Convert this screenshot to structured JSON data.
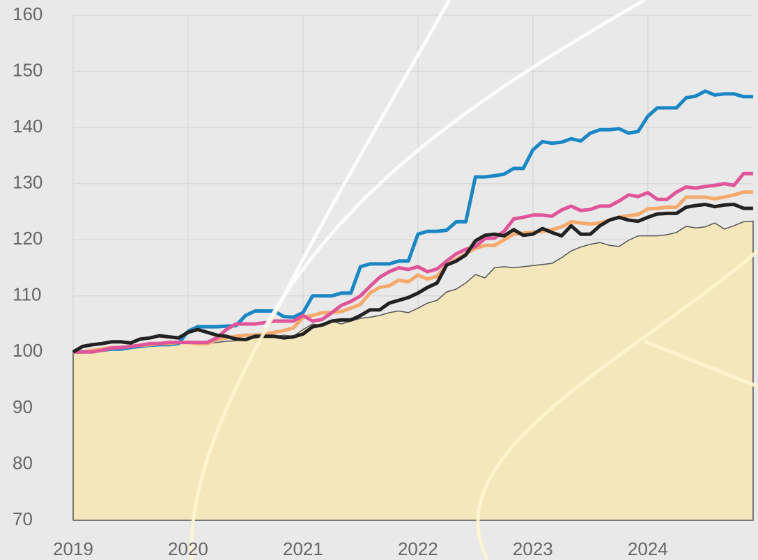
{
  "chart_data": {
    "type": "line",
    "categories": [
      "2019",
      null,
      null,
      null,
      null,
      null,
      null,
      null,
      null,
      null,
      null,
      null,
      "2020",
      null,
      null,
      null,
      null,
      null,
      null,
      null,
      null,
      null,
      null,
      null,
      "2021",
      null,
      null,
      null,
      null,
      null,
      null,
      null,
      null,
      null,
      null,
      null,
      "2022",
      null,
      null,
      null,
      null,
      null,
      null,
      null,
      null,
      null,
      null,
      null,
      "2023",
      null,
      null,
      null,
      null,
      null,
      null,
      null,
      null,
      null,
      null,
      null,
      "2024",
      null,
      null,
      null,
      null,
      null,
      null,
      null,
      null,
      null,
      null,
      null
    ],
    "ylim": [
      70,
      160
    ],
    "yticks": [
      70,
      80,
      90,
      100,
      110,
      120,
      130,
      140,
      150,
      160
    ],
    "grid": true,
    "series": [
      {
        "color": "#555555",
        "fill": "#f3e7bb",
        "area": true,
        "values": [
          100,
          100,
          100.2,
          100.5,
          100.7,
          100.8,
          101,
          101.2,
          101.2,
          101.4,
          101.5,
          101.5,
          101.7,
          101.5,
          101.5,
          101.7,
          101.9,
          102,
          102.3,
          102.5,
          102.8,
          102.8,
          103,
          102.8,
          104,
          105,
          104.7,
          105.5,
          105,
          105.5,
          106,
          106.2,
          106.5,
          107,
          107.3,
          107,
          107.8,
          108.7,
          109.2,
          110.7,
          111.2,
          112.3,
          113.8,
          113.2,
          115,
          115.2,
          115,
          115.2,
          115.4,
          115.6,
          115.8,
          116.8,
          118,
          118.7,
          119.2,
          119.5,
          119,
          118.8,
          119.9,
          120.7,
          120.7,
          120.7,
          120.9,
          121.3,
          122.4,
          122.1,
          122.3,
          123,
          121.9,
          122.5,
          123.2,
          123.3
        ]
      },
      {
        "color": "#1a87c4",
        "values": [
          100,
          100,
          100.2,
          100.3,
          100.5,
          100.5,
          100.8,
          101,
          101.2,
          101.3,
          101.3,
          101.5,
          103.7,
          104.5,
          104.5,
          104.5,
          104.6,
          104.7,
          106.5,
          107.3,
          107.3,
          107.3,
          106.3,
          106.2,
          107,
          110,
          110,
          110,
          110.5,
          110.5,
          115.2,
          115.7,
          115.7,
          115.7,
          116.2,
          116.2,
          121,
          121.5,
          121.5,
          121.7,
          123.2,
          123.2,
          131.2,
          131.2,
          131.4,
          131.7,
          132.7,
          132.7,
          136,
          137.5,
          137.2,
          137.4,
          138,
          137.6,
          139,
          139.6,
          139.6,
          139.8,
          139,
          139.3,
          142,
          143.5,
          143.5,
          143.5,
          145.3,
          145.6,
          146.5,
          145.8,
          146,
          146,
          145.5,
          145.5
        ]
      },
      {
        "color": "#f5a96b",
        "values": [
          100,
          100,
          100.3,
          100.5,
          100.8,
          100.8,
          101,
          101.2,
          101.3,
          101.5,
          101.5,
          101.7,
          101.7,
          101.5,
          101.5,
          102.2,
          102.5,
          102.8,
          103,
          103,
          103.2,
          103.5,
          103.8,
          104.3,
          106.2,
          106.5,
          107,
          107,
          107.2,
          107.8,
          108.5,
          110.5,
          111.5,
          111.8,
          112.8,
          112.5,
          113.7,
          113,
          113.5,
          115.5,
          116.5,
          117.5,
          118.5,
          119,
          119,
          120,
          121,
          121.2,
          121.3,
          121.5,
          121.8,
          122.3,
          123.2,
          123,
          122.8,
          123,
          123.5,
          124,
          124.3,
          124.5,
          125.5,
          125.6,
          125.8,
          125.8,
          127.6,
          127.6,
          127.6,
          127.3,
          127.6,
          128,
          128.5,
          128.5
        ]
      },
      {
        "color": "#e0559a",
        "values": [
          100,
          100,
          100,
          100.3,
          100.7,
          100.8,
          101,
          101.2,
          101.5,
          101.5,
          101.7,
          101.7,
          101.7,
          101.7,
          101.7,
          102.5,
          104,
          105,
          105,
          105,
          105.2,
          105.5,
          105.5,
          105.5,
          106.5,
          105.5,
          105.8,
          107,
          108.3,
          109,
          110,
          111.7,
          113.3,
          114.3,
          115,
          114.7,
          115.2,
          114.3,
          114.8,
          116.2,
          117.5,
          118.3,
          118.8,
          120.2,
          120.3,
          121.5,
          123.7,
          124,
          124.4,
          124.4,
          124.2,
          125.3,
          126,
          125.2,
          125.4,
          126,
          126,
          126.9,
          128,
          127.7,
          128.4,
          127.2,
          127.2,
          128.5,
          129.4,
          129.2,
          129.5,
          129.7,
          130,
          129.7,
          131.8,
          131.8
        ]
      },
      {
        "color": "#222222",
        "values": [
          100,
          101,
          101.3,
          101.5,
          101.8,
          101.8,
          101.6,
          102.3,
          102.5,
          102.9,
          102.7,
          102.5,
          103.5,
          104,
          103.5,
          103,
          102.8,
          102.3,
          102.2,
          102.8,
          102.8,
          102.8,
          102.5,
          102.7,
          103.2,
          104.5,
          104.8,
          105.5,
          105.7,
          105.7,
          106.5,
          107.5,
          107.5,
          108.7,
          109.2,
          109.7,
          110.5,
          111.5,
          112.3,
          115.5,
          116.2,
          117.3,
          119.8,
          120.8,
          121,
          120.7,
          121.8,
          120.8,
          121,
          122,
          121.3,
          120.7,
          122.5,
          121,
          121,
          122.5,
          123.5,
          124,
          123.5,
          123.3,
          124,
          124.6,
          124.7,
          124.7,
          125.8,
          126.1,
          126.3,
          125.9,
          126.2,
          126.3,
          125.6,
          125.6
        ]
      }
    ]
  }
}
